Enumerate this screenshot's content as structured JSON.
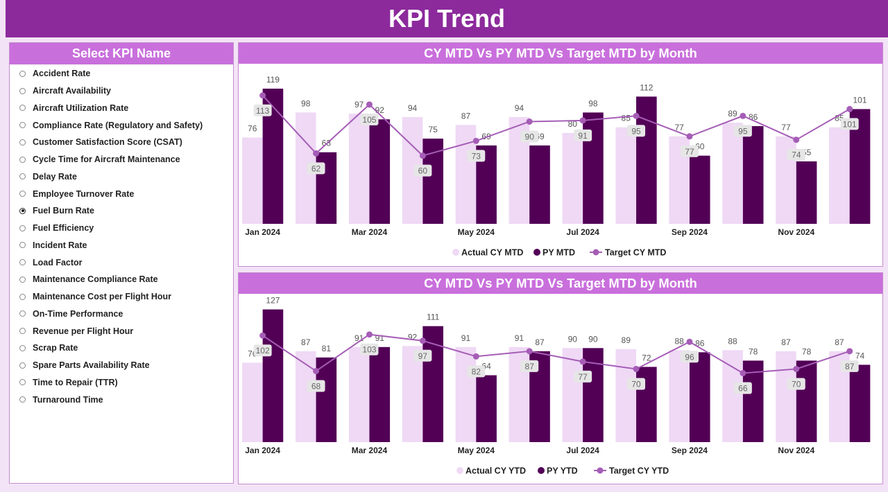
{
  "header": {
    "title": "KPI Trend"
  },
  "slicer": {
    "title": "Select KPI Name",
    "items": [
      "Accident Rate",
      "Aircraft Availability",
      "Aircraft Utilization Rate",
      "Compliance Rate (Regulatory and Safety)",
      "Customer Satisfaction Score (CSAT)",
      "Cycle Time for Aircraft Maintenance",
      "Delay Rate",
      "Employee Turnover Rate",
      "Fuel Burn Rate",
      "Fuel Efficiency",
      "Incident Rate",
      "Load Factor",
      "Maintenance Compliance Rate",
      "Maintenance Cost per Flight Hour",
      "On-Time Performance",
      "Revenue per Flight Hour",
      "Scrap Rate",
      "Spare Parts Availability Rate",
      "Time to Repair (TTR)",
      "Turnaround Time"
    ],
    "selected_index": 8
  },
  "colors": {
    "actual": "#efd9f5",
    "prior": "#520056",
    "target": "#a55db6",
    "header": "#8c2a9c",
    "title_bar": "#c96fdc"
  },
  "chart_data": [
    {
      "type": "bar",
      "title": "CY MTD Vs PY MTD Vs Target MTD by Month",
      "categories": [
        "Jan 2024",
        "Feb 2024",
        "Mar 2024",
        "Apr 2024",
        "May 2024",
        "Jun 2024",
        "Jul 2024",
        "Aug 2024",
        "Sep 2024",
        "Oct 2024",
        "Nov 2024",
        "Dec 2024"
      ],
      "tick_labels": [
        "Jan 2024",
        "",
        "Mar 2024",
        "",
        "May 2024",
        "",
        "Jul 2024",
        "",
        "Sep 2024",
        "",
        "Nov 2024",
        ""
      ],
      "series": [
        {
          "name": "Actual CY MTD",
          "kind": "bar",
          "values": [
            76,
            98,
            97,
            94,
            87,
            94,
            80,
            85,
            77,
            89,
            77,
            85
          ]
        },
        {
          "name": "PY MTD",
          "kind": "bar",
          "values": [
            119,
            63,
            92,
            75,
            69,
            69,
            98,
            112,
            60,
            86,
            55,
            101
          ]
        },
        {
          "name": "Target CY MTD",
          "kind": "line",
          "values": [
            113,
            62,
            105,
            60,
            73,
            90,
            91,
            95,
            77,
            95,
            74,
            101
          ]
        }
      ],
      "ylim": [
        0,
        122
      ],
      "legend": "bottom-center",
      "grid": false
    },
    {
      "type": "bar",
      "title": "CY MTD Vs PY MTD Vs Target MTD by Month",
      "categories": [
        "Jan 2024",
        "Feb 2024",
        "Mar 2024",
        "Apr 2024",
        "May 2024",
        "Jun 2024",
        "Jul 2024",
        "Aug 2024",
        "Sep 2024",
        "Oct 2024",
        "Nov 2024",
        "Dec 2024"
      ],
      "tick_labels": [
        "Jan 2024",
        "",
        "Mar 2024",
        "",
        "May 2024",
        "",
        "Jul 2024",
        "",
        "Sep 2024",
        "",
        "Nov 2024",
        ""
      ],
      "series": [
        {
          "name": "Actual CY YTD",
          "kind": "bar",
          "values": [
            76,
            87,
            91,
            92,
            91,
            91,
            90,
            89,
            88,
            88,
            87,
            87
          ]
        },
        {
          "name": "PY YTD",
          "kind": "bar",
          "values": [
            127,
            81,
            91,
            111,
            64,
            87,
            90,
            72,
            86,
            78,
            78,
            74
          ]
        },
        {
          "name": "Target CY YTD",
          "kind": "line",
          "values": [
            102,
            68,
            103,
            97,
            82,
            87,
            77,
            70,
            96,
            66,
            70,
            87
          ]
        }
      ],
      "ylim": [
        0,
        130
      ],
      "legend": "bottom-center",
      "grid": false
    }
  ]
}
